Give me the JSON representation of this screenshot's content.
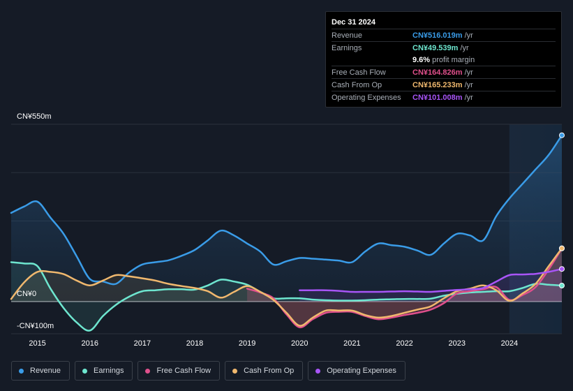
{
  "tooltip": {
    "date": "Dec 31 2024",
    "rows": [
      {
        "label": "Revenue",
        "value": "CN¥516.019m",
        "unit": "/yr",
        "color": "#3a9ce8"
      },
      {
        "label": "Earnings",
        "value": "CN¥49.539m",
        "unit": "/yr",
        "color": "#6ee6cf"
      },
      {
        "label": "",
        "value": "9.6%",
        "unit": "profit margin",
        "color": "#ffffff"
      },
      {
        "label": "Free Cash Flow",
        "value": "CN¥164.826m",
        "unit": "/yr",
        "color": "#e0508c"
      },
      {
        "label": "Cash From Op",
        "value": "CN¥165.233m",
        "unit": "/yr",
        "color": "#f0b86e"
      },
      {
        "label": "Operating Expenses",
        "value": "CN¥101.008m",
        "unit": "/yr",
        "color": "#a855f7"
      }
    ]
  },
  "legend": [
    {
      "label": "Revenue",
      "color": "#3a9ce8"
    },
    {
      "label": "Earnings",
      "color": "#6ee6cf"
    },
    {
      "label": "Free Cash Flow",
      "color": "#e0508c"
    },
    {
      "label": "Cash From Op",
      "color": "#f0b86e"
    },
    {
      "label": "Operating Expenses",
      "color": "#a855f7"
    }
  ],
  "chart_data": {
    "type": "line",
    "title": "",
    "xlabel": "",
    "ylabel": "",
    "y_top_label": "CN¥550m",
    "y_zero_label": "CN¥0",
    "y_bottom_label": "-CN¥100m",
    "ylim": [
      -100,
      550
    ],
    "xlim": [
      2014.5,
      2025.0
    ],
    "x_ticks": [
      "2015",
      "2016",
      "2017",
      "2018",
      "2019",
      "2020",
      "2021",
      "2022",
      "2023",
      "2024"
    ],
    "x_tick_values": [
      2015,
      2016,
      2017,
      2018,
      2019,
      2020,
      2021,
      2022,
      2023,
      2024
    ],
    "highlight_from": 2024.0,
    "series": [
      {
        "name": "Revenue",
        "color": "#3a9ce8",
        "x": [
          2014.5,
          2014.75,
          2015.0,
          2015.25,
          2015.5,
          2015.75,
          2016.0,
          2016.25,
          2016.5,
          2016.75,
          2017.0,
          2017.25,
          2017.5,
          2017.75,
          2018.0,
          2018.25,
          2018.5,
          2018.75,
          2019.0,
          2019.25,
          2019.5,
          2019.75,
          2020.0,
          2020.25,
          2020.5,
          2020.75,
          2021.0,
          2021.25,
          2021.5,
          2021.75,
          2022.0,
          2022.25,
          2022.5,
          2022.75,
          2023.0,
          2023.25,
          2023.5,
          2023.75,
          2024.0,
          2024.25,
          2024.5,
          2024.75,
          2025.0
        ],
        "values": [
          275,
          295,
          310,
          260,
          210,
          140,
          70,
          62,
          55,
          90,
          115,
          122,
          128,
          142,
          160,
          190,
          220,
          205,
          180,
          155,
          115,
          125,
          135,
          133,
          130,
          127,
          122,
          155,
          180,
          175,
          170,
          158,
          145,
          180,
          210,
          205,
          190,
          265,
          320,
          365,
          410,
          455,
          516
        ]
      },
      {
        "name": "Earnings",
        "color": "#6ee6cf",
        "x": [
          2014.5,
          2014.75,
          2015.0,
          2015.25,
          2015.5,
          2015.75,
          2016.0,
          2016.25,
          2016.5,
          2016.75,
          2017.0,
          2017.25,
          2017.5,
          2017.75,
          2018.0,
          2018.25,
          2018.5,
          2018.75,
          2019.0,
          2019.25,
          2019.5,
          2019.75,
          2020.0,
          2020.25,
          2020.5,
          2020.75,
          2021.0,
          2021.25,
          2021.5,
          2021.75,
          2022.0,
          2022.25,
          2022.5,
          2022.75,
          2023.0,
          2023.25,
          2023.5,
          2023.75,
          2024.0,
          2024.25,
          2024.5,
          2024.75,
          2025.0
        ],
        "values": [
          122,
          118,
          110,
          40,
          -20,
          -65,
          -90,
          -45,
          -10,
          15,
          32,
          35,
          38,
          38,
          37,
          50,
          68,
          62,
          52,
          30,
          10,
          10,
          10,
          6,
          4,
          3,
          3,
          4,
          6,
          7,
          8,
          8,
          9,
          18,
          24,
          28,
          30,
          32,
          32,
          42,
          55,
          52,
          49.5
        ]
      },
      {
        "name": "Free Cash Flow",
        "color": "#e0508c",
        "x": [
          2019.0,
          2019.25,
          2019.5,
          2019.75,
          2020.0,
          2020.25,
          2020.5,
          2020.75,
          2021.0,
          2021.25,
          2021.5,
          2021.75,
          2022.0,
          2022.25,
          2022.5,
          2022.75,
          2023.0,
          2023.25,
          2023.5,
          2023.75,
          2024.0,
          2024.25,
          2024.5,
          2024.75,
          2025.0
        ],
        "values": [
          40,
          28,
          10,
          -40,
          -80,
          -55,
          -35,
          -32,
          -32,
          -45,
          -55,
          -50,
          -42,
          -35,
          -25,
          -5,
          25,
          32,
          38,
          45,
          5,
          20,
          45,
          100,
          164.8
        ]
      },
      {
        "name": "Cash From Op",
        "color": "#f0b86e",
        "x": [
          2014.5,
          2014.75,
          2015.0,
          2015.25,
          2015.5,
          2015.75,
          2016.0,
          2016.25,
          2016.5,
          2016.75,
          2017.0,
          2017.25,
          2017.5,
          2017.75,
          2018.0,
          2018.25,
          2018.5,
          2018.75,
          2019.0,
          2019.25,
          2019.5,
          2019.75,
          2020.0,
          2020.25,
          2020.5,
          2020.75,
          2021.0,
          2021.25,
          2021.5,
          2021.75,
          2022.0,
          2022.25,
          2022.5,
          2022.75,
          2023.0,
          2023.25,
          2023.5,
          2023.75,
          2024.0,
          2024.25,
          2024.5,
          2024.75,
          2025.0
        ],
        "values": [
          8,
          60,
          92,
          92,
          85,
          65,
          50,
          65,
          82,
          78,
          72,
          65,
          55,
          48,
          42,
          32,
          12,
          30,
          48,
          30,
          5,
          -35,
          -75,
          -50,
          -28,
          -28,
          -28,
          -42,
          -50,
          -45,
          -35,
          -25,
          -15,
          10,
          32,
          40,
          50,
          35,
          2,
          25,
          55,
          110,
          165.2
        ]
      },
      {
        "name": "Operating Expenses",
        "color": "#a855f7",
        "x": [
          2020.0,
          2020.25,
          2020.5,
          2020.75,
          2021.0,
          2021.25,
          2021.5,
          2021.75,
          2022.0,
          2022.25,
          2022.5,
          2022.75,
          2023.0,
          2023.25,
          2023.5,
          2023.75,
          2024.0,
          2024.25,
          2024.5,
          2024.75,
          2025.0
        ],
        "values": [
          35,
          35,
          35,
          33,
          30,
          30,
          30,
          31,
          32,
          31,
          30,
          33,
          36,
          38,
          42,
          62,
          82,
          84,
          86,
          92,
          101
        ]
      }
    ]
  }
}
